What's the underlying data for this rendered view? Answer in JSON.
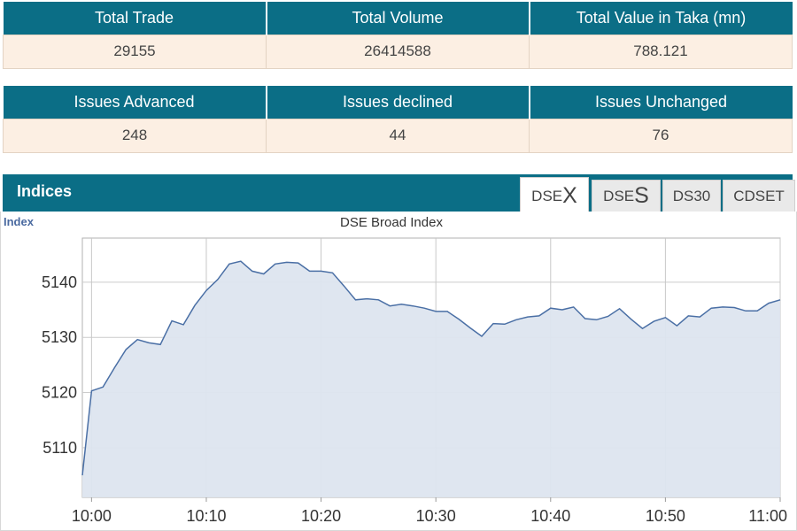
{
  "summary": {
    "headers": [
      "Total Trade",
      "Total Volume",
      "Total Value in Taka (mn)"
    ],
    "values": [
      "29155",
      "26414588",
      "788.121"
    ]
  },
  "issues": {
    "headers": [
      "Issues Advanced",
      "Issues declined",
      "Issues Unchanged"
    ],
    "values": [
      "248",
      "44",
      "76"
    ]
  },
  "indices": {
    "title": "Indices",
    "tabs": [
      {
        "prefix": "DSE",
        "suffix": "X",
        "active": true
      },
      {
        "prefix": "DSE",
        "suffix": "S",
        "active": false
      },
      {
        "label": "DS30",
        "active": false
      },
      {
        "label": "CDSET",
        "active": false
      }
    ]
  },
  "colors": {
    "header_bg": "#0b6e86",
    "cell_bg": "#fcefe3",
    "line": "#4a6fa5",
    "fill": "#dde5ef"
  },
  "chart_data": {
    "type": "area",
    "title": "DSE Broad Index",
    "ylabel": "Index",
    "xlabel": "",
    "x_ticks": [
      "10:00",
      "10:10",
      "10:20",
      "10:30",
      "10:40",
      "10:50",
      "11:00"
    ],
    "y_ticks": [
      5110,
      5120,
      5130,
      5140
    ],
    "xlim": [
      -0.8,
      60
    ],
    "ylim": [
      5101,
      5148
    ],
    "grid": true,
    "series": [
      {
        "x": [
          -0.8,
          0,
          1,
          2,
          3,
          4,
          5,
          6,
          7,
          8,
          9,
          10,
          11,
          12,
          13,
          14,
          15,
          16,
          17,
          18,
          19,
          20,
          21,
          22,
          23,
          24,
          25,
          26,
          27,
          28,
          29,
          30,
          31,
          32,
          33,
          34,
          35,
          36,
          37,
          38,
          39,
          40,
          41,
          42,
          43,
          44,
          45,
          46,
          47,
          48,
          49,
          50,
          51,
          52,
          53,
          54,
          55,
          56,
          57,
          58,
          59,
          60
        ],
        "y": [
          5105,
          5120.3,
          5121,
          5124.5,
          5127.8,
          5129.6,
          5129,
          5128.7,
          5133,
          5132.3,
          5135.8,
          5138.5,
          5140.5,
          5143.3,
          5143.8,
          5142,
          5141.5,
          5143.3,
          5143.6,
          5143.5,
          5142,
          5142,
          5141.7,
          5139.3,
          5136.8,
          5137,
          5136.8,
          5135.7,
          5136,
          5135.7,
          5135.3,
          5134.7,
          5134.7,
          5133.3,
          5131.7,
          5130.2,
          5132.5,
          5132.4,
          5133.2,
          5133.7,
          5133.9,
          5135.3,
          5135,
          5135.5,
          5133.4,
          5133.2,
          5133.8,
          5135.2,
          5133.3,
          5131.6,
          5132.9,
          5133.6,
          5132.1,
          5133.9,
          5133.7,
          5135.3,
          5135.5,
          5135.4,
          5134.8,
          5134.8,
          5136.2,
          5136.8
        ]
      }
    ]
  }
}
